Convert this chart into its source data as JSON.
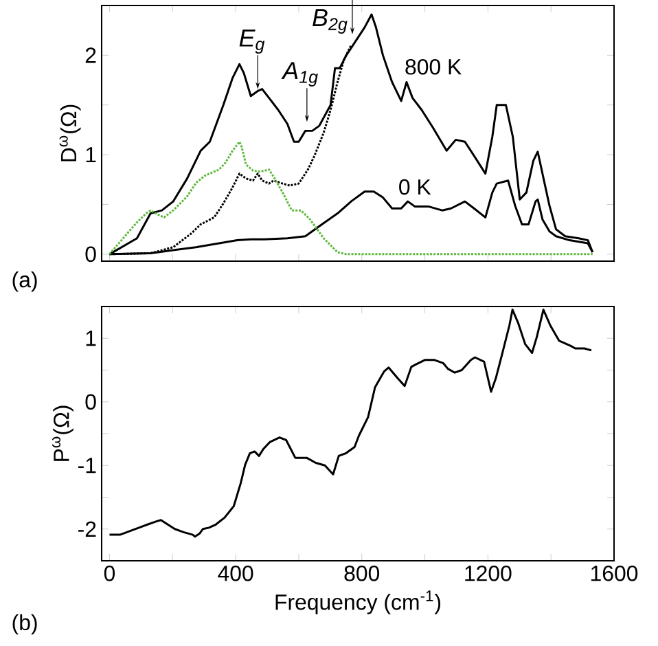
{
  "chart_data": [
    {
      "type": "line",
      "ylabel": "D$^{ω}$(Ω)",
      "xlim": [
        -25,
        1600
      ],
      "ylim": [
        -0.07,
        2.5
      ],
      "xticks": [
        0,
        {
          "value": 200,
          "label": null
        },
        400,
        {
          "value": 600,
          "label": null
        },
        800,
        {
          "value": 1000,
          "label": null
        },
        1200,
        {
          "value": 1400,
          "label": null
        },
        1600
      ],
      "yticks": [
        0,
        {
          "value": 0.5,
          "label": null
        },
        1,
        {
          "value": 1.5,
          "label": null
        },
        2
      ],
      "tick_labels": "y",
      "marker": "none",
      "series": [
        {
          "name": "800 K",
          "color": "#000000",
          "line_style": "solid",
          "x": [
            0,
            87,
            130,
            166,
            202,
            246,
            289,
            318,
            361,
            390,
            412,
            426,
            448,
            470,
            484,
            506,
            535,
            564,
            585,
            600,
            621,
            643,
            665,
            701,
            715,
            730,
            751,
            780,
            809,
            831,
            845,
            867,
            896,
            925,
            942,
            961,
            990,
            1026,
            1069,
            1098,
            1127,
            1156,
            1192,
            1214,
            1228,
            1257,
            1279,
            1301,
            1322,
            1344,
            1358,
            1373,
            1395,
            1416,
            1445,
            1488,
            1517,
            1532
          ],
          "values": [
            0,
            0.16,
            0.41,
            0.44,
            0.53,
            0.76,
            1.04,
            1.13,
            1.5,
            1.77,
            1.91,
            1.82,
            1.59,
            1.64,
            1.66,
            1.57,
            1.45,
            1.31,
            1.13,
            1.13,
            1.24,
            1.24,
            1.29,
            1.5,
            1.87,
            1.87,
            2.0,
            2.14,
            2.28,
            2.41,
            2.28,
            2.0,
            1.73,
            1.54,
            1.73,
            1.57,
            1.45,
            1.27,
            1.04,
            1.15,
            1.13,
            0.99,
            0.81,
            1.18,
            1.5,
            1.5,
            1.18,
            0.55,
            0.62,
            0.94,
            1.03,
            0.81,
            0.49,
            0.25,
            0.18,
            0.16,
            0.14,
            0.02
          ]
        },
        {
          "name": "0 K",
          "color": "#000000",
          "line_style": "solid",
          "x": [
            0,
            130,
            274,
            405,
            448,
            491,
            564,
            621,
            665,
            723,
            766,
            809,
            838,
            867,
            896,
            925,
            946,
            968,
            1011,
            1055,
            1083,
            1127,
            1156,
            1192,
            1214,
            1228,
            1264,
            1286,
            1308,
            1329,
            1351,
            1358,
            1373,
            1395,
            1416,
            1459,
            1517,
            1532
          ],
          "values": [
            0,
            0.01,
            0.07,
            0.14,
            0.15,
            0.15,
            0.16,
            0.18,
            0.28,
            0.41,
            0.53,
            0.63,
            0.63,
            0.57,
            0.46,
            0.46,
            0.53,
            0.48,
            0.48,
            0.44,
            0.46,
            0.53,
            0.46,
            0.37,
            0.62,
            0.71,
            0.74,
            0.49,
            0.3,
            0.3,
            0.53,
            0.55,
            0.35,
            0.23,
            0.18,
            0.14,
            0.11,
            0.02
          ]
        },
        {
          "color": "#000000",
          "line_style": "dotted",
          "x": [
            0,
            130,
            202,
            260,
            289,
            332,
            361,
            390,
            412,
            433,
            455,
            470,
            484,
            506,
            520,
            549,
            571,
            600,
            629,
            650,
            679,
            701,
            723,
            744,
            766
          ],
          "values": [
            0,
            0.01,
            0.07,
            0.21,
            0.3,
            0.37,
            0.51,
            0.67,
            0.81,
            0.76,
            0.74,
            0.81,
            0.74,
            0.71,
            0.74,
            0.71,
            0.69,
            0.71,
            0.85,
            0.99,
            1.22,
            1.45,
            1.73,
            1.96,
            2.1
          ]
        },
        {
          "color": "#5cb83a",
          "line_style": "dotted",
          "x": [
            0,
            43,
            87,
            116,
            130,
            152,
            173,
            202,
            246,
            275,
            303,
            332,
            347,
            368,
            390,
            412,
            419,
            433,
            455,
            477,
            506,
            520,
            549,
            578,
            607,
            636,
            679,
            723,
            751,
            1532
          ],
          "values": [
            0,
            0.16,
            0.32,
            0.41,
            0.44,
            0.4,
            0.37,
            0.44,
            0.58,
            0.72,
            0.79,
            0.83,
            0.85,
            0.92,
            1.04,
            1.13,
            1.08,
            0.9,
            0.84,
            0.83,
            0.85,
            0.78,
            0.62,
            0.44,
            0.44,
            0.35,
            0.16,
            0.02,
            0,
            0
          ]
        }
      ],
      "annotations": [
        {
          "text": "E$_{g}$",
          "x": 470,
          "y": 1.64
        },
        {
          "text": "A$_{1g}$",
          "x": 626,
          "y": 1.31
        },
        {
          "text": "B$_{2g}$",
          "x": 770,
          "y": 2.19
        },
        "(a)"
      ]
    },
    {
      "type": "line",
      "xlabel": "Frequency (cm$^{-1}$)",
      "ylabel": "P$^{ω}$(Ω)",
      "xlim": [
        -25,
        1600
      ],
      "ylim": [
        -2.5,
        1.5
      ],
      "xticks": [
        0,
        {
          "value": 200,
          "label": null
        },
        400,
        {
          "value": 600,
          "label": null
        },
        800,
        {
          "value": 1000,
          "label": null
        },
        1200,
        {
          "value": 1400,
          "label": null
        },
        1600
      ],
      "yticks": [
        -2,
        {
          "value": -1.5,
          "label": null
        },
        -1,
        {
          "value": -0.5,
          "label": null
        },
        0,
        {
          "value": 0.5,
          "label": null
        },
        1
      ],
      "marker": "none",
      "line_style": "solid",
      "color": "#000000",
      "x": [
        0,
        33,
        77,
        120,
        149,
        163,
        185,
        207,
        235,
        264,
        271,
        286,
        296,
        315,
        337,
        365,
        394,
        416,
        430,
        445,
        460,
        474,
        488,
        509,
        539,
        560,
        589,
        625,
        654,
        683,
        709,
        727,
        749,
        777,
        791,
        820,
        842,
        871,
        885,
        914,
        936,
        957,
        972,
        1001,
        1029,
        1058,
        1073,
        1095,
        1117,
        1146,
        1159,
        1188,
        1210,
        1225,
        1246,
        1268,
        1278,
        1296,
        1318,
        1340,
        1355,
        1376,
        1398,
        1426,
        1463,
        1477,
        1506,
        1528
      ],
      "values": [
        -2.09,
        -2.09,
        -2.01,
        -1.93,
        -1.88,
        -1.86,
        -1.93,
        -2.0,
        -2.05,
        -2.09,
        -2.12,
        -2.07,
        -2.0,
        -1.98,
        -1.93,
        -1.82,
        -1.64,
        -1.28,
        -0.99,
        -0.81,
        -0.78,
        -0.85,
        -0.74,
        -0.63,
        -0.56,
        -0.6,
        -0.88,
        -0.88,
        -0.96,
        -1.0,
        -1.14,
        -0.85,
        -0.81,
        -0.71,
        -0.53,
        -0.24,
        0.23,
        0.48,
        0.54,
        0.37,
        0.25,
        0.55,
        0.59,
        0.66,
        0.66,
        0.61,
        0.52,
        0.46,
        0.5,
        0.66,
        0.7,
        0.63,
        0.16,
        0.37,
        0.77,
        1.2,
        1.45,
        1.24,
        0.91,
        0.77,
        1.02,
        1.45,
        1.2,
        0.96,
        0.88,
        0.84,
        0.84,
        0.81
      ],
      "annotations": [
        "(b)"
      ]
    }
  ]
}
